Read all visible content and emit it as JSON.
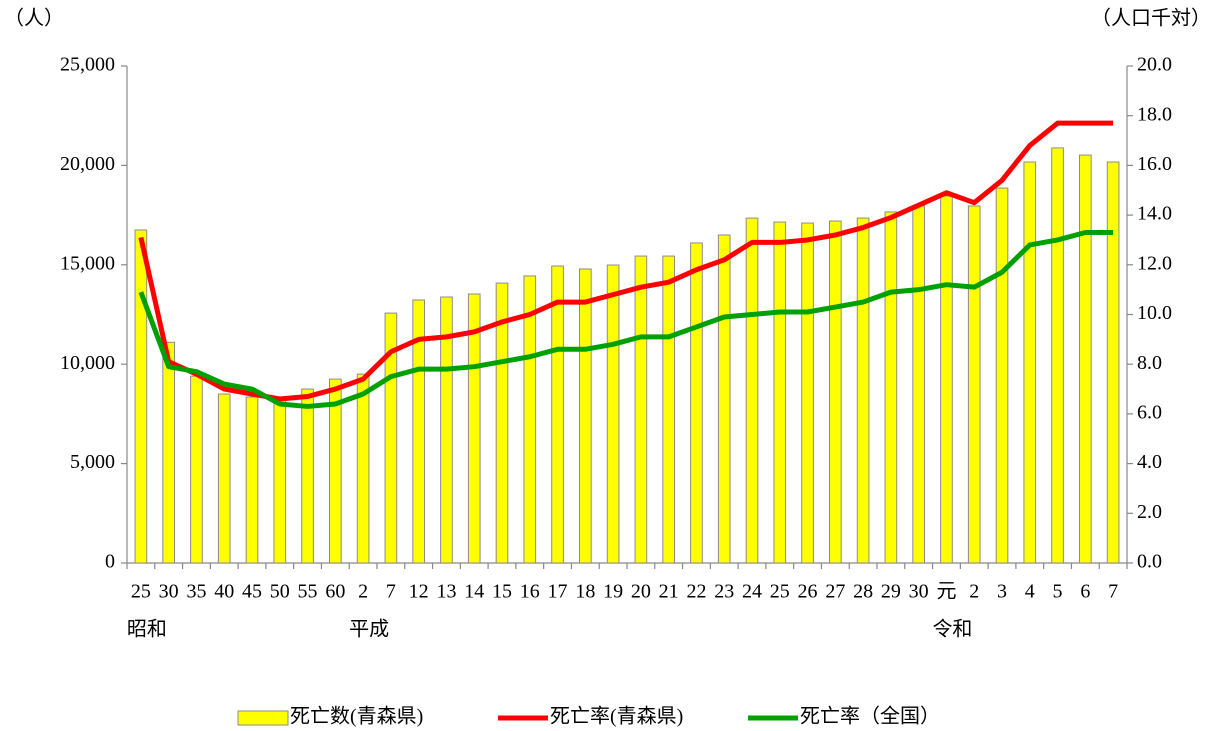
{
  "chart_data": {
    "type": "bar_line",
    "y_label": "（人）",
    "y2_label": "（人口千対）",
    "categories": [
      "25",
      "30",
      "35",
      "40",
      "45",
      "50",
      "55",
      "60",
      "2",
      "7",
      "12",
      "13",
      "14",
      "15",
      "16",
      "17",
      "18",
      "19",
      "20",
      "21",
      "22",
      "23",
      "24",
      "25",
      "26",
      "27",
      "28",
      "29",
      "30",
      "元",
      "2",
      "3",
      "4",
      "5",
      "6",
      "7"
    ],
    "era_categories": [
      "昭和",
      null,
      null,
      null,
      null,
      null,
      null,
      null,
      "平成",
      null,
      null,
      null,
      null,
      null,
      null,
      null,
      null,
      null,
      null,
      null,
      null,
      null,
      null,
      null,
      null,
      null,
      null,
      null,
      null,
      "令和",
      null,
      null,
      null,
      null,
      null,
      null
    ],
    "series": [
      {
        "name": "死亡数(青森県)",
        "type": "bar",
        "color": "#ffff00",
        "values": [
          16750,
          11100,
          9400,
          8500,
          8350,
          8250,
          8750,
          9250,
          9500,
          12570,
          13230,
          13380,
          13530,
          14080,
          14440,
          14940,
          14790,
          14990,
          15440,
          15440,
          16100,
          16500,
          17350,
          17150,
          17100,
          17200,
          17350,
          17660,
          17960,
          18460,
          17960,
          18860,
          20170,
          20880,
          20520,
          20170
        ]
      },
      {
        "name": "死亡率(青森県)",
        "type": "line",
        "axis": "y2",
        "color": "#ff0000",
        "values": [
          13.1,
          8.1,
          7.6,
          7.0,
          6.8,
          6.6,
          6.7,
          7.0,
          7.4,
          8.5,
          9.0,
          9.1,
          9.3,
          9.7,
          10.0,
          10.5,
          10.5,
          10.8,
          11.1,
          11.3,
          11.8,
          12.2,
          12.9,
          12.9,
          13.0,
          13.2,
          13.5,
          13.9,
          14.4,
          14.9,
          14.5,
          15.4,
          16.8,
          17.7,
          17.7,
          17.7
        ]
      },
      {
        "name": "死亡率（全国）",
        "type": "line",
        "axis": "y2",
        "color": "#00a000",
        "values": [
          10.9,
          7.9,
          7.7,
          7.2,
          7.0,
          6.4,
          6.3,
          6.4,
          6.8,
          7.5,
          7.8,
          7.8,
          7.9,
          8.1,
          8.3,
          8.6,
          8.6,
          8.8,
          9.1,
          9.1,
          9.5,
          9.9,
          10.0,
          10.1,
          10.1,
          10.3,
          10.5,
          10.9,
          11.0,
          11.2,
          11.1,
          11.7,
          12.8,
          13.0,
          13.3,
          13.3
        ]
      }
    ],
    "ylim": [
      0,
      25000
    ],
    "yticks": [
      0,
      {
        "value": 5000,
        "label": "5,000"
      },
      {
        "value": 10000,
        "label": "10,000"
      },
      {
        "value": 15000,
        "label": "15,000"
      },
      {
        "value": 20000,
        "label": "20,000"
      },
      {
        "value": 25000,
        "label": "25,000"
      }
    ],
    "y2lim": [
      0,
      20
    ],
    "y2ticks": [
      {
        "value": 0,
        "label": "0.0"
      },
      {
        "value": 2,
        "label": "2.0"
      },
      {
        "value": 4,
        "label": "4.0"
      },
      {
        "value": 6,
        "label": "6.0"
      },
      {
        "value": 8,
        "label": "8.0"
      },
      {
        "value": 10,
        "label": "10.0"
      },
      {
        "value": 12,
        "label": "12.0"
      },
      {
        "value": 14,
        "label": "14.0"
      },
      {
        "value": 16,
        "label": "16.0"
      },
      {
        "value": 18,
        "label": "18.0"
      },
      {
        "value": 20,
        "label": "20.0"
      }
    ],
    "legend": "bottom"
  }
}
